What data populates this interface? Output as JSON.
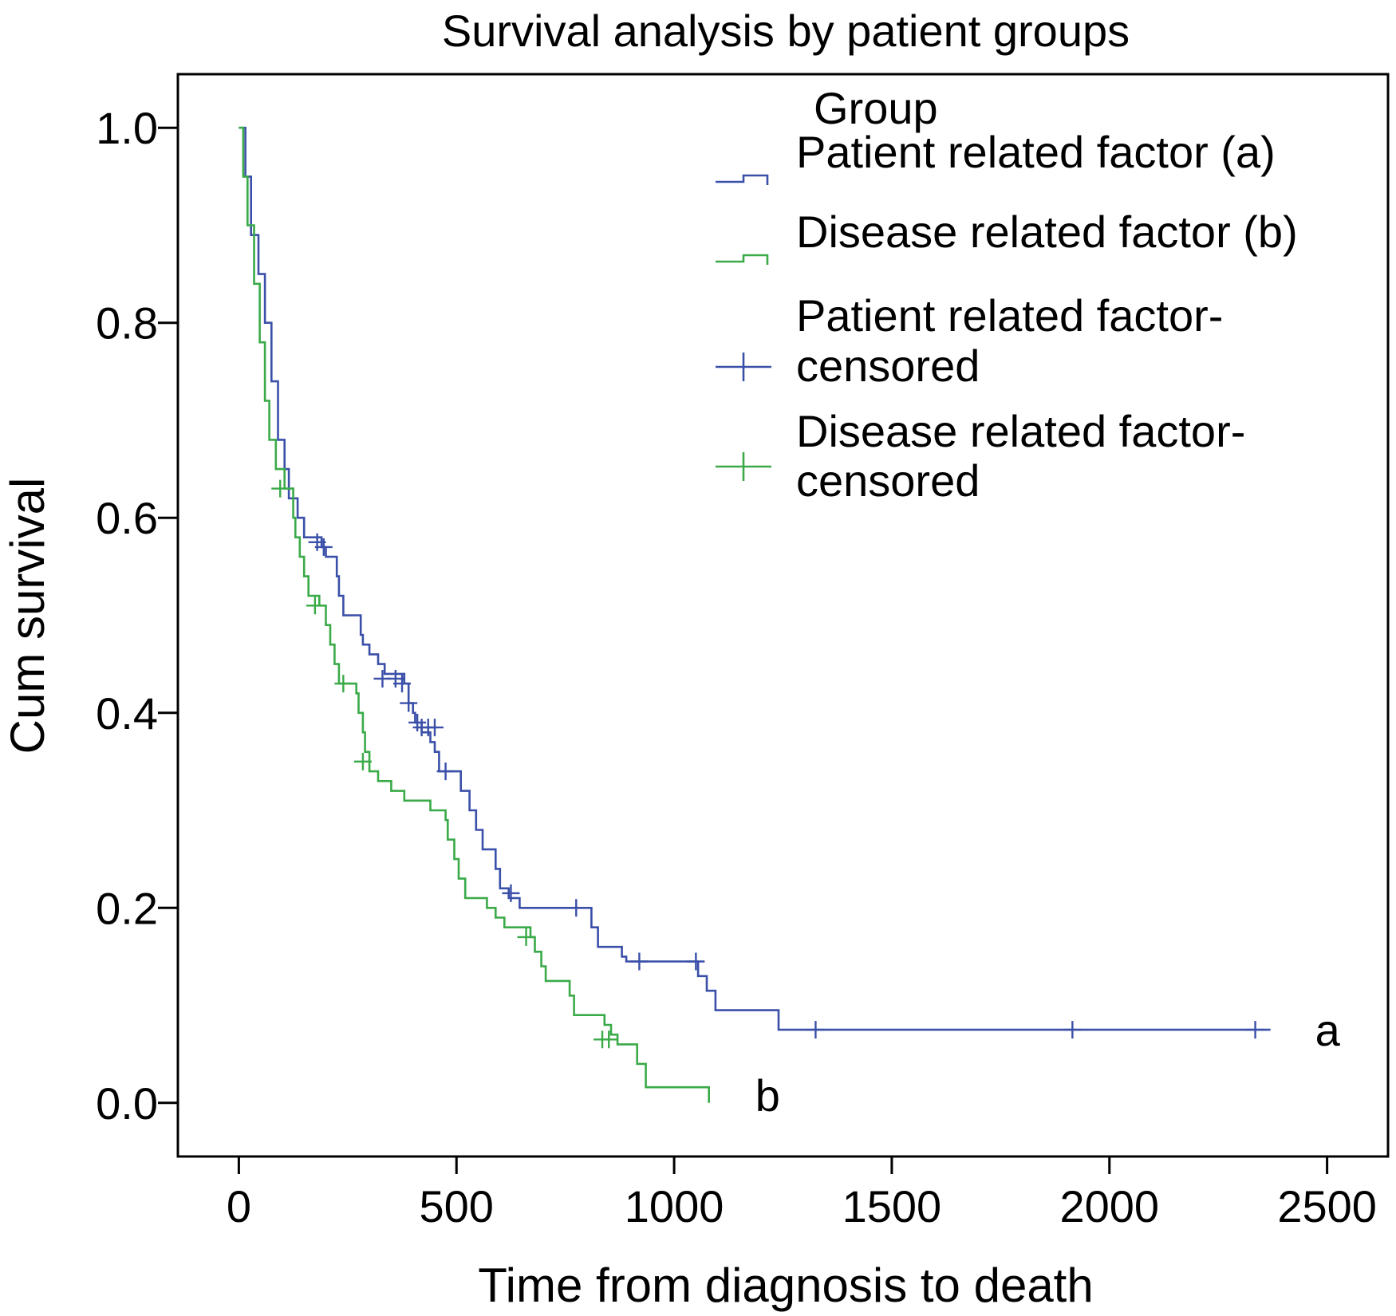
{
  "chart_data": {
    "type": "line",
    "subtype": "kaplan-meier step",
    "title": "Survival analysis by patient groups",
    "xlabel": "Time from diagnosis to death",
    "ylabel": "Cum survival",
    "xlim": [
      -140,
      2640
    ],
    "ylim": [
      -0.055,
      1.055
    ],
    "x_ticks": [
      0,
      500,
      1000,
      1500,
      2000,
      2500
    ],
    "x_tick_labels": [
      "0",
      "500",
      "1000",
      "1500",
      "2000",
      "2500"
    ],
    "y_ticks": [
      0.0,
      0.2,
      0.4,
      0.6,
      0.8,
      1.0
    ],
    "y_tick_labels": [
      "0.0",
      "0.2",
      "0.4",
      "0.6",
      "0.8",
      "1.0"
    ],
    "grid": false,
    "legend": {
      "title": "Group",
      "placement": "top-right",
      "entries": [
        {
          "label": "Patient related factor (a)",
          "symbol": "step",
          "color": "#3a4fa8"
        },
        {
          "label": "Disease related factor (b)",
          "symbol": "step",
          "color": "#3aaa48"
        },
        {
          "label_lines": [
            "Patient related factor-",
            "censored"
          ],
          "symbol": "plus",
          "color": "#3a4fa8"
        },
        {
          "label_lines": [
            "Disease related factor-",
            "censored"
          ],
          "symbol": "plus",
          "color": "#3aaa48"
        }
      ]
    },
    "series": [
      {
        "name": "Patient related factor (a)",
        "end_label": "a",
        "color": "#3a4fa8",
        "steps": [
          [
            0,
            1.0
          ],
          [
            15,
            0.95
          ],
          [
            28,
            0.89
          ],
          [
            45,
            0.85
          ],
          [
            60,
            0.8
          ],
          [
            75,
            0.74
          ],
          [
            90,
            0.68
          ],
          [
            105,
            0.65
          ],
          [
            115,
            0.62
          ],
          [
            135,
            0.6
          ],
          [
            150,
            0.58
          ],
          [
            190,
            0.57
          ],
          [
            200,
            0.56
          ],
          [
            225,
            0.54
          ],
          [
            230,
            0.52
          ],
          [
            240,
            0.5
          ],
          [
            280,
            0.48
          ],
          [
            285,
            0.47
          ],
          [
            300,
            0.46
          ],
          [
            320,
            0.45
          ],
          [
            335,
            0.44
          ],
          [
            380,
            0.43
          ],
          [
            390,
            0.41
          ],
          [
            400,
            0.4
          ],
          [
            405,
            0.39
          ],
          [
            420,
            0.38
          ],
          [
            440,
            0.37
          ],
          [
            450,
            0.36
          ],
          [
            460,
            0.34
          ],
          [
            510,
            0.32
          ],
          [
            530,
            0.3
          ],
          [
            545,
            0.28
          ],
          [
            560,
            0.26
          ],
          [
            590,
            0.24
          ],
          [
            600,
            0.22
          ],
          [
            620,
            0.21
          ],
          [
            645,
            0.2
          ],
          [
            810,
            0.18
          ],
          [
            825,
            0.16
          ],
          [
            880,
            0.15
          ],
          [
            890,
            0.145
          ],
          [
            1055,
            0.13
          ],
          [
            1075,
            0.115
          ],
          [
            1095,
            0.095
          ],
          [
            1240,
            0.075
          ],
          [
            2370,
            0.075
          ]
        ],
        "censored": [
          [
            180,
            0.575
          ],
          [
            195,
            0.57
          ],
          [
            330,
            0.435
          ],
          [
            360,
            0.435
          ],
          [
            375,
            0.43
          ],
          [
            390,
            0.41
          ],
          [
            410,
            0.39
          ],
          [
            420,
            0.385
          ],
          [
            435,
            0.385
          ],
          [
            450,
            0.385
          ],
          [
            475,
            0.34
          ],
          [
            625,
            0.215
          ],
          [
            775,
            0.2
          ],
          [
            920,
            0.145
          ],
          [
            1050,
            0.145
          ],
          [
            1325,
            0.075
          ],
          [
            1915,
            0.075
          ],
          [
            2335,
            0.075
          ]
        ]
      },
      {
        "name": "Disease related factor (b)",
        "end_label": "b",
        "color": "#3aaa48",
        "steps": [
          [
            0,
            1.0
          ],
          [
            10,
            0.95
          ],
          [
            20,
            0.9
          ],
          [
            35,
            0.84
          ],
          [
            48,
            0.78
          ],
          [
            60,
            0.72
          ],
          [
            70,
            0.68
          ],
          [
            85,
            0.65
          ],
          [
            105,
            0.63
          ],
          [
            125,
            0.6
          ],
          [
            130,
            0.58
          ],
          [
            140,
            0.56
          ],
          [
            150,
            0.54
          ],
          [
            160,
            0.52
          ],
          [
            185,
            0.51
          ],
          [
            200,
            0.49
          ],
          [
            210,
            0.47
          ],
          [
            220,
            0.45
          ],
          [
            230,
            0.43
          ],
          [
            270,
            0.42
          ],
          [
            275,
            0.4
          ],
          [
            285,
            0.38
          ],
          [
            290,
            0.36
          ],
          [
            300,
            0.34
          ],
          [
            320,
            0.33
          ],
          [
            350,
            0.32
          ],
          [
            380,
            0.31
          ],
          [
            440,
            0.3
          ],
          [
            475,
            0.29
          ],
          [
            480,
            0.27
          ],
          [
            495,
            0.25
          ],
          [
            505,
            0.23
          ],
          [
            520,
            0.21
          ],
          [
            570,
            0.2
          ],
          [
            590,
            0.19
          ],
          [
            610,
            0.18
          ],
          [
            670,
            0.17
          ],
          [
            680,
            0.155
          ],
          [
            695,
            0.14
          ],
          [
            705,
            0.125
          ],
          [
            760,
            0.11
          ],
          [
            770,
            0.09
          ],
          [
            840,
            0.08
          ],
          [
            855,
            0.07
          ],
          [
            870,
            0.06
          ],
          [
            915,
            0.04
          ],
          [
            935,
            0.016
          ],
          [
            1080,
            0.016
          ],
          [
            1080,
            0.0
          ]
        ],
        "censored": [
          [
            95,
            0.63
          ],
          [
            175,
            0.51
          ],
          [
            240,
            0.43
          ],
          [
            285,
            0.35
          ],
          [
            660,
            0.17
          ],
          [
            835,
            0.065
          ],
          [
            850,
            0.065
          ]
        ]
      }
    ]
  }
}
